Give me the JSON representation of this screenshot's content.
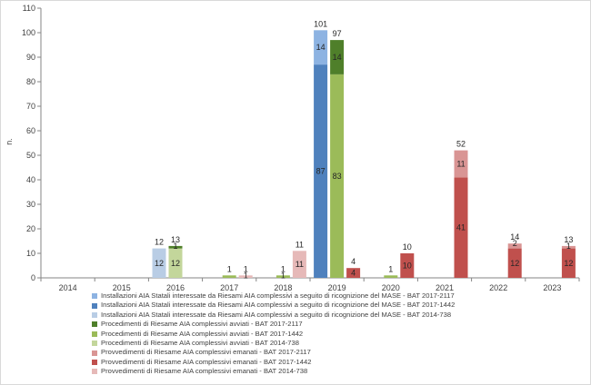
{
  "chart_data": {
    "type": "bar",
    "ylabel": "n.",
    "ylim": [
      0,
      110
    ],
    "yticks": [
      0,
      10,
      20,
      30,
      40,
      50,
      60,
      70,
      80,
      90,
      100,
      110
    ],
    "categories": [
      "2014",
      "2015",
      "2016",
      "2017",
      "2018",
      "2019",
      "2020",
      "2021",
      "2022",
      "2023"
    ],
    "groups": [
      {
        "name": "Installazioni",
        "stack": [
          {
            "name": "Installazioni AIA Statali interessate da Riesami AIA complessivi a seguito di ricognizione del MASE - BAT 2017-2117",
            "color": "#8db3e2",
            "values": [
              0,
              0,
              0,
              0,
              0,
              14,
              0,
              0,
              0,
              0
            ]
          },
          {
            "name": "Installazioni AIA Statali interessate da Riesami AIA complessivi a seguito di ricognizione del MASE - BAT 2017-1442",
            "color": "#4f81bd",
            "values": [
              0,
              0,
              0,
              0,
              0,
              87,
              0,
              0,
              0,
              0
            ]
          },
          {
            "name": "Installazioni AIA Statali interessate da Riesami AIA complessivi a seguito di ricognizione del MASE - BAT 2014-738",
            "color": "#b9cde5",
            "values": [
              0,
              0,
              12,
              0,
              0,
              0,
              0,
              0,
              0,
              0
            ]
          }
        ],
        "totals": [
          "",
          "",
          "12",
          "",
          "",
          "101",
          "",
          "",
          "",
          ""
        ],
        "inner_labels": [
          [],
          [],
          [
            "12"
          ],
          [],
          [],
          [
            "14",
            "87"
          ],
          [],
          [],
          [],
          []
        ]
      },
      {
        "name": "Procedimenti",
        "stack": [
          {
            "name": "Procedimenti di Riesame AIA complessivi avviati - BAT 2017-2117",
            "color": "#4f7f2a",
            "values": [
              0,
              0,
              1,
              0,
              0,
              14,
              0,
              0,
              0,
              0
            ]
          },
          {
            "name": "Procedimenti di Riesame AIA complessivi avviati - BAT 2017-1442",
            "color": "#9bbb59",
            "values": [
              0,
              0,
              0,
              1,
              1,
              83,
              1,
              0,
              0,
              0
            ]
          },
          {
            "name": "Procedimenti di Riesame AIA complessivi avviati - BAT 2014-738",
            "color": "#c3d69b",
            "values": [
              0,
              0,
              12,
              0,
              0,
              0,
              0,
              0,
              0,
              0
            ]
          }
        ],
        "totals": [
          "",
          "",
          "13",
          "1",
          "1",
          "97",
          "1",
          "",
          "",
          ""
        ],
        "inner_labels": [
          [],
          [],
          [
            "1",
            "12"
          ],
          [],
          [
            "1"
          ],
          [
            "14",
            "83"
          ],
          [],
          [],
          [],
          []
        ]
      },
      {
        "name": "Provvedimenti",
        "stack": [
          {
            "name": "Provvedimenti di Riesame AIA complessivi emanati - BAT 2017-2117",
            "color": "#d99594",
            "values": [
              0,
              0,
              0,
              0,
              0,
              0,
              0,
              11,
              2,
              1
            ]
          },
          {
            "name": "Provvedimenti di Riesame AIA complessivi emanati - BAT 2017-1442",
            "color": "#c0504d",
            "values": [
              0,
              0,
              0,
              0,
              0,
              4,
              10,
              41,
              12,
              12
            ]
          },
          {
            "name": "Provvedimenti di Riesame AIA complessivi emanati - BAT 2014-738",
            "color": "#e6b9b8",
            "values": [
              0,
              0,
              0,
              1,
              11,
              0,
              0,
              0,
              0,
              0
            ]
          }
        ],
        "totals": [
          "",
          "",
          "",
          "1",
          "11",
          "4",
          "10",
          "52",
          "14",
          "13"
        ],
        "inner_labels": [
          [],
          [],
          [],
          [
            "1"
          ],
          [
            "11"
          ],
          [
            "4"
          ],
          [
            "10"
          ],
          [
            "11",
            "41"
          ],
          [
            "2",
            "12"
          ],
          [
            "1",
            "12"
          ]
        ]
      }
    ],
    "legend_order": [
      "Installazioni AIA Statali interessate da Riesami AIA complessivi a seguito di ricognizione del MASE - BAT 2017-2117",
      "Installazioni AIA Statali interessate da Riesami AIA complessivi a seguito di ricognizione del MASE - BAT 2017-1442",
      "Installazioni AIA Statali interessate da Riesami AIA complessivi a seguito di ricognizione del MASE - BAT 2014-738",
      "Procedimenti di Riesame AIA complessivi avviati - BAT 2017-2117",
      "Procedimenti di Riesame AIA complessivi avviati - BAT 2017-1442",
      "Procedimenti di Riesame AIA complessivi avviati - BAT 2014-738",
      "Provvedimenti di Riesame AIA complessivi emanati - BAT 2017-2117",
      "Provvedimenti di Riesame AIA complessivi emanati - BAT 2017-1442",
      "Provvedimenti di Riesame AIA complessivi emanati - BAT 2014-738"
    ],
    "legend_placement": "bottom",
    "grid": false
  }
}
